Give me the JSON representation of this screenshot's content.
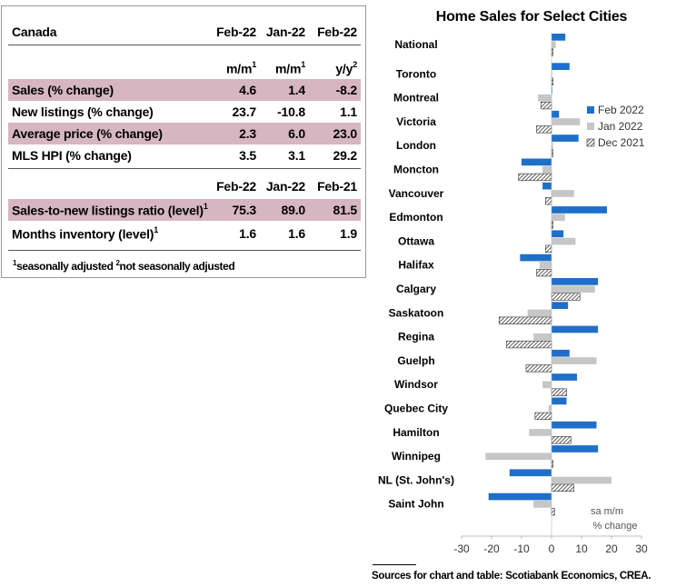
{
  "table": {
    "header": {
      "region": "Canada",
      "col1": "Feb-22",
      "col2": "Jan-22",
      "col3": "Feb-22"
    },
    "units": {
      "col1": "m/m",
      "col1_sup": "1",
      "col2": "m/m",
      "col2_sup": "1",
      "col3": "y/y",
      "col3_sup": "2"
    },
    "rows": [
      {
        "label": "Sales (% change)",
        "c1": "4.6",
        "c2": "1.4",
        "c3": "-8.2"
      },
      {
        "label": "New listings (% change)",
        "c1": "23.7",
        "c2": "-10.8",
        "c3": "1.1"
      },
      {
        "label": "Average price (% change)",
        "c1": "2.3",
        "c2": "6.0",
        "c3": "23.0"
      },
      {
        "label": "MLS HPI (% change)",
        "c1": "3.5",
        "c2": "3.1",
        "c3": "29.2"
      }
    ],
    "level_header": {
      "col1": "Feb-22",
      "col2": "Jan-22",
      "col3": "Feb-21"
    },
    "level_rows": [
      {
        "label": "Sales-to-new listings ratio (level)",
        "sup": "1",
        "c1": "75.3",
        "c2": "89.0",
        "c3": "81.5"
      },
      {
        "label": "Months inventory (level)",
        "sup": "1",
        "c1": "1.6",
        "c2": "1.6",
        "c3": "1.9"
      }
    ],
    "footnote": {
      "sup1": "1",
      "text1": "seasonally adjusted",
      "sup2": "2",
      "text2": "not seasonally adjusted"
    }
  },
  "source": "Sources for chart and table: Scotiabank Economics, CREA.",
  "colors": {
    "feb": "#1e6fc9",
    "jan": "#c6c6c6",
    "dec_hatch": "#333333"
  },
  "chart_data": {
    "type": "bar",
    "orientation": "horizontal",
    "title": "Home Sales for Select Cities",
    "unit_note": [
      "sa m/m",
      "% change"
    ],
    "categories": [
      "National",
      "Toronto",
      "Montreal",
      "Victoria",
      "London",
      "Moncton",
      "Vancouver",
      "Edmonton",
      "Ottawa",
      "Halifax",
      "Calgary",
      "Saskatoon",
      "Regina",
      "Guelph",
      "Windsor",
      "Quebec City",
      "Hamilton",
      "Winnipeg",
      "NL (St. John's)",
      "Saint John"
    ],
    "series": [
      {
        "name": "Feb 2022",
        "style": "solid-blue",
        "values": [
          4.6,
          6.0,
          0.0,
          2.5,
          9.0,
          -10.0,
          -3.0,
          18.5,
          4.0,
          -10.5,
          15.5,
          5.5,
          15.5,
          6.0,
          8.5,
          5.0,
          15.0,
          15.5,
          -14.0,
          -21.0
        ]
      },
      {
        "name": "Jan 2022",
        "style": "solid-grey",
        "values": [
          1.4,
          0.0,
          -4.5,
          9.5,
          0.5,
          -3.0,
          7.5,
          4.5,
          8.0,
          -4.0,
          14.5,
          -8.0,
          -6.0,
          15.0,
          -3.0,
          -1.0,
          -7.5,
          -22.0,
          20.0,
          -6.0
        ]
      },
      {
        "name": "Dec 2021",
        "style": "hatched",
        "values": [
          0.5,
          0.5,
          -3.5,
          -5.0,
          0.5,
          -11.0,
          -2.0,
          0.5,
          -2.0,
          -5.0,
          9.5,
          -17.5,
          -15.0,
          -8.5,
          5.0,
          -5.5,
          6.5,
          0.5,
          7.5,
          1.0
        ]
      }
    ],
    "xlim": [
      -30,
      30
    ],
    "xticks": [
      -30,
      -20,
      -10,
      0,
      10,
      20,
      30
    ],
    "legend_position": "right"
  }
}
